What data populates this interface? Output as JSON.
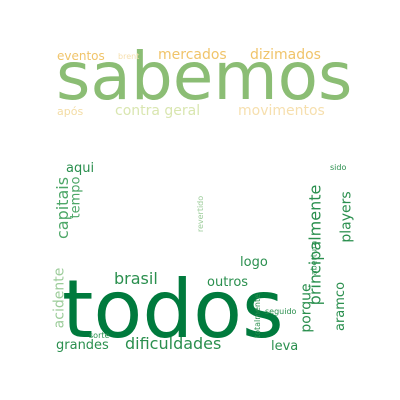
{
  "words": {
    "todos": {
      "text": "todos",
      "color": "#007a3d"
    },
    "sabemos": {
      "text": "sabemos",
      "color": "#8bbd74"
    },
    "dificuldades": {
      "text": "dificuldades",
      "color": "#2a8f4e"
    },
    "principalmente": {
      "text": "principalmente",
      "color": "#2a8f4e"
    },
    "capitais": {
      "text": "capitais",
      "color": "#4ea768"
    },
    "brasil": {
      "text": "brasil",
      "color": "#2a8f4e"
    },
    "porque": {
      "text": "porque",
      "color": "#2a8f4e"
    },
    "players": {
      "text": "players",
      "color": "#2a8f4e"
    },
    "grandes": {
      "text": "grandes",
      "color": "#2a8f4e"
    },
    "acidente": {
      "text": "acidente",
      "color": "#9ccc9a"
    },
    "mercados": {
      "text": "mercados",
      "color": "#f0c46a"
    },
    "dizimados": {
      "text": "dizimados",
      "color": "#f0c46a"
    },
    "eventos": {
      "text": "eventos",
      "color": "#f0c46a"
    },
    "contra_geral": {
      "text": "contra geral",
      "color": "#d9e6b0"
    },
    "movimentos": {
      "text": "movimentos",
      "color": "#f6dfae"
    },
    "apos": {
      "text": "após",
      "color": "#f3dca4"
    },
    "brent": {
      "text": "brent",
      "color": "#f6dfae"
    },
    "aqui": {
      "text": "aqui",
      "color": "#2a8f4e"
    },
    "tempo": {
      "text": "tempo",
      "color": "#4ea768"
    },
    "logo": {
      "text": "logo",
      "color": "#2a8f4e"
    },
    "outros": {
      "text": "outros",
      "color": "#2a8f4e"
    },
    "aramco": {
      "text": "aramco",
      "color": "#2a8f4e"
    },
    "leva": {
      "text": "leva",
      "color": "#2a8f4e"
    },
    "revertido": {
      "text": "revertido",
      "color": "#9ccc9a"
    },
    "abertura": {
      "text": "abertura",
      "color": "#2a8f4e"
    },
    "seguido": {
      "text": "seguido",
      "color": "#2a8f4e"
    },
    "totalmente": {
      "text": "totalmente",
      "color": "#2a8f4e"
    },
    "sorte": {
      "text": "sorte",
      "color": "#2a8f4e"
    },
    "sido": {
      "text": "sido",
      "color": "#2a8f4e"
    }
  }
}
